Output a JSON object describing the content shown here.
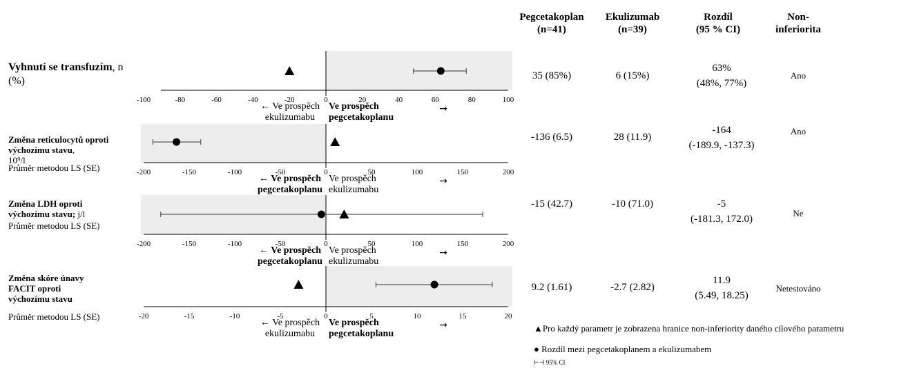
{
  "headers": [
    "Pegcetakoplan\n(n=41)",
    "Ekulizumab\n(n=39)",
    "Rozdíl\n(95 % CI)",
    "Non-\ninferiorita"
  ],
  "rows": [
    {
      "label_bold": "Vyhnutí se transfuzím",
      "label_rest": ", n (%)",
      "sub": "",
      "peg": "35 (85%)",
      "eku": "6 (15%)",
      "diff_line1": "63%",
      "diff_line2": "(48%, 77%)",
      "noninf": "Ano",
      "left_dir": "← Ve prospěch\nekulizumabu",
      "right_dir": "Ve prospěch\npegcetakoplanu",
      "left_dir_bold": false,
      "right_dir_bold": true
    },
    {
      "label_bold": "Změna reticulocytů oproti výchozímu stavu",
      "label_rest": ",\n10⁹/l",
      "sub": "Průměr metodou LS (SE)",
      "peg": "-136 (6.5)",
      "eku": "28 (11.9)",
      "diff_line1": "-164",
      "diff_line2": "(-189.9, -137.3)",
      "noninf": "Ano",
      "left_dir": "← Ve prospěch\npegcetakoplanu",
      "right_dir": "Ve prospěch\nekulizumabu",
      "left_dir_bold": true,
      "right_dir_bold": false
    },
    {
      "label_bold": "Změna LDH oproti výchozímu stavu;",
      "label_rest": " j/l",
      "sub": "Průměr metodou LS (SE)",
      "peg": "-15 (42.7)",
      "eku": "-10 (71.0)",
      "diff_line1": "-5",
      "diff_line2": "(-181.3, 172.0)",
      "noninf": "Ne",
      "left_dir": "← Ve prospěch\npegcetakoplanu",
      "right_dir": "Ve prospěch\nekulizumabu",
      "left_dir_bold": true,
      "right_dir_bold": false
    },
    {
      "label_bold": "Změna skóre únavy FACIT oproti výchozímu stavu",
      "label_rest": "",
      "sub": "Průměr metodou LS (SE)",
      "peg": "9.2 (1.61)",
      "eku": "-2.7 (2.82)",
      "diff_line1": "11.9",
      "diff_line2": "(5.49, 18.25)",
      "noninf": "Netestováno",
      "left_dir": "← Ve prospěch\nekulizumabu",
      "right_dir": "Ve prospěch\npegcetakoplanu",
      "left_dir_bold": false,
      "right_dir_bold": true
    }
  ],
  "legend": {
    "triangle": "Pro každý parametr je zobrazena hranice non-inferiority daného cílového parametru",
    "circle": "Rozdíl mezi pegcetakoplanem a ekulizumabem",
    "ci": "95% CI"
  },
  "colors": {
    "shade": "#ededed",
    "axis": "#000000",
    "ci": "#555555"
  },
  "chart_data": [
    {
      "type": "scatter",
      "title": "Vyhnutí se transfuzím, n (%)",
      "xlim": [
        -100,
        100
      ],
      "xticks": [
        -100,
        -80,
        -60,
        -40,
        -20,
        0,
        20,
        40,
        60,
        80,
        100
      ],
      "shaded_side": "right",
      "series": [
        {
          "name": "Rozdíl mezi pegcetakoplanem a ekulizumabem",
          "x": 63,
          "ci": [
            48,
            77
          ]
        },
        {
          "name": "Pro každý parametr je zobrazena hranice non-inferiority daného cílového parametru",
          "x": -20
        }
      ]
    },
    {
      "type": "scatter",
      "title": "Změna reticulocytů oproti výchozímu stavu, 10⁹/l",
      "xlim": [
        -200,
        200
      ],
      "xticks": [
        -200,
        -150,
        -100,
        -50,
        0,
        50,
        100,
        150,
        200
      ],
      "shaded_side": "left",
      "series": [
        {
          "name": "Rozdíl mezi pegcetakoplanem a ekulizumabem",
          "x": -164,
          "ci": [
            -189.9,
            -137.3
          ]
        },
        {
          "name": "Pro každý parametr je zobrazena hranice non-inferiority daného cílového parametru",
          "x": 10
        }
      ]
    },
    {
      "type": "scatter",
      "title": "Změna LDH oproti výchozímu stavu; j/l",
      "xlim": [
        -200,
        200
      ],
      "xticks": [
        -200,
        -150,
        -100,
        -50,
        0,
        50,
        100,
        150,
        200
      ],
      "shaded_side": "left",
      "series": [
        {
          "name": "Rozdíl mezi pegcetakoplanem a ekulizumabem",
          "x": -5,
          "ci": [
            -181.3,
            172.0
          ]
        },
        {
          "name": "Pro každý parametr je zobrazena hranice non-inferiority daného cílového parametru",
          "x": 20
        }
      ]
    },
    {
      "type": "scatter",
      "title": "Změna skóre únavy FACIT oproti výchozímu stavu",
      "xlim": [
        -20,
        20
      ],
      "xticks": [
        -20,
        -15,
        -10,
        -5,
        0,
        5,
        10,
        15,
        20
      ],
      "shaded_side": "right",
      "series": [
        {
          "name": "Rozdíl mezi pegcetakoplanem a ekulizumabem",
          "x": 11.9,
          "ci": [
            5.49,
            18.25
          ]
        },
        {
          "name": "Pro každý parametr je zobrazena hranice non-inferiority daného cílového parametru",
          "x": -3
        }
      ]
    }
  ]
}
